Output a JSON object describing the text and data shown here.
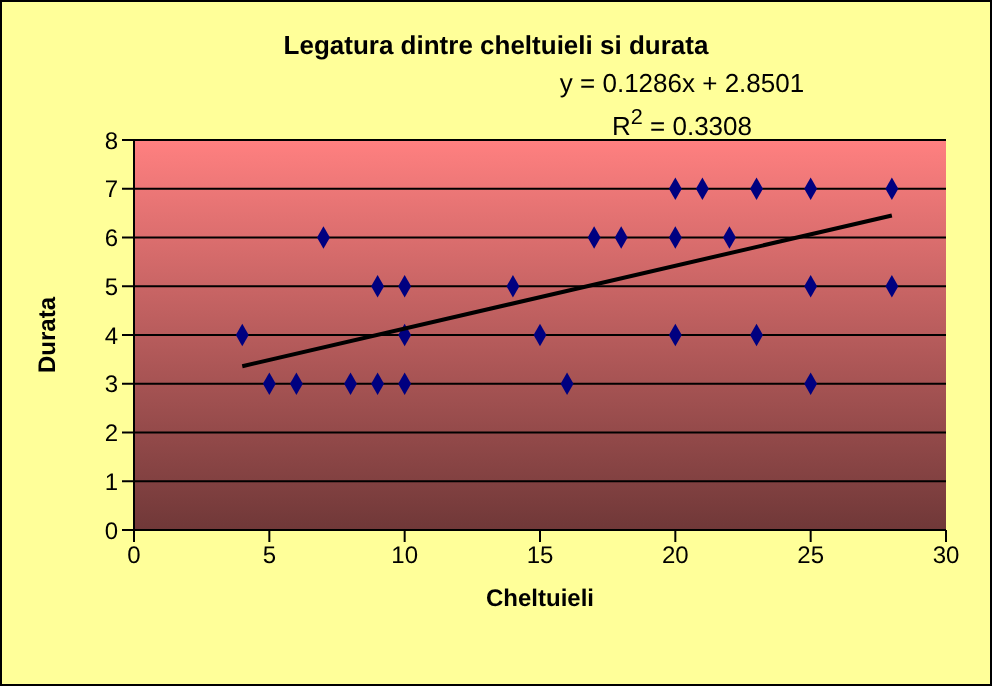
{
  "chart_data": {
    "type": "scatter",
    "title": "Legatura dintre cheltuieli si durata",
    "xlabel": "Cheltuieli",
    "ylabel": "Durata",
    "annotations": [
      "y = 0.1286x + 2.8501",
      "R$^{2}$ = 0.3308"
    ],
    "series": [
      {
        "color": "#000080",
        "x": [
          4,
          5,
          6,
          7,
          8,
          9,
          9,
          10,
          10,
          10,
          14,
          15,
          16,
          17,
          18,
          20,
          20,
          20,
          21,
          22,
          23,
          23,
          25,
          25,
          25,
          28,
          28
        ],
        "values": [
          4,
          3,
          3,
          6,
          3,
          3,
          5,
          5,
          4,
          3,
          5,
          4,
          3,
          6,
          6,
          7,
          6,
          4,
          7,
          6,
          7,
          4,
          7,
          5,
          3,
          7,
          5
        ]
      },
      {
        "type": "line",
        "marker": "none",
        "color": "#000000",
        "x": [
          4,
          28
        ],
        "values": [
          3.36,
          6.45
        ]
      }
    ],
    "xlim": [
      0,
      30
    ],
    "xticks": [
      0,
      5,
      10,
      15,
      20,
      25,
      30
    ],
    "ylim": [
      0,
      8
    ],
    "yticks": [
      0,
      1,
      2,
      3,
      4,
      5,
      6,
      7,
      8
    ],
    "grid": "y",
    "marker": "diamond",
    "line_style": "solid"
  }
}
